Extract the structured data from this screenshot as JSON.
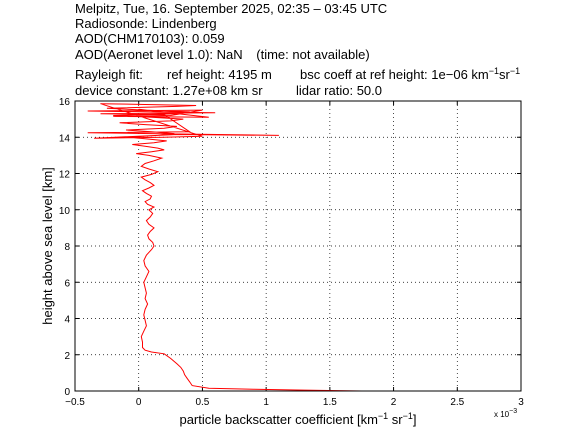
{
  "header": {
    "line1": "Melpitz, Tue, 16. September 2025, 02:35 – 03:45 UTC",
    "line2": "Radiosonde: Lindenberg",
    "line3": "AOD(CHM170103): 0.059",
    "line4_main": "AOD(Aeronet level 1.0): NaN",
    "line4_note": "(time: not available)",
    "rayleigh_label": "Rayleigh fit:",
    "ref_height": "ref height: 4195 m",
    "bsc_coeff_prefix": "bsc coeff at ref height: 1e−06 km",
    "device_constant": "device constant: 1.27e+08 km sr",
    "lidar_ratio": "lidar ratio: 50.0"
  },
  "units": {
    "exp_minus1": "−1",
    "sr": "sr"
  },
  "chart_data": {
    "type": "line",
    "xlabel_prefix": "particle backscatter coefficient [km",
    "xlabel_mid": " sr",
    "xlabel_suffix": "]",
    "xscale_label": "x 10",
    "xscale_exp": "−3",
    "ylabel": "height above sea level [km]",
    "xlim": [
      -0.5,
      3
    ],
    "ylim": [
      0,
      16
    ],
    "xticks": [
      -0.5,
      0,
      0.5,
      1,
      1.5,
      2,
      2.5,
      3
    ],
    "xtick_labels": [
      "−0.5",
      "0",
      "0.5",
      "1",
      "1.5",
      "2",
      "2.5",
      "3"
    ],
    "yticks": [
      0,
      2,
      4,
      6,
      8,
      10,
      12,
      14,
      16
    ],
    "ytick_labels": [
      "0",
      "2",
      "4",
      "6",
      "8",
      "10",
      "12",
      "14",
      "16"
    ],
    "grid": true,
    "series": [
      {
        "color": "#ff0000",
        "x": [
          1.75,
          1.3,
          0.9,
          0.55,
          0.42,
          0.4,
          0.38,
          0.36,
          0.35,
          0.33,
          0.3,
          0.25,
          0.2,
          0.1,
          0.05,
          0.03,
          0.03,
          0.02,
          0.04,
          0.06,
          0.05,
          0.04,
          0.05,
          0.07,
          0.05,
          0.06,
          0.05,
          0.04,
          0.06,
          0.08,
          0.05,
          0.04,
          0.06,
          0.1,
          0.12,
          0.11,
          0.08,
          0.07,
          0.09,
          0.12,
          0.08,
          0.06,
          0.09,
          0.11,
          0.08,
          0.12,
          0.07,
          0.05,
          0.09,
          0.1,
          0.06,
          0.03,
          0.08,
          0.12,
          0.09,
          0.05,
          0.02,
          0.1,
          0.15,
          0.08,
          0.02,
          0.05,
          0.12,
          0.18,
          0.08,
          -0.02,
          0.1,
          0.2,
          0.15,
          0.05,
          -0.05,
          0.12,
          0.22,
          0.08,
          -0.08,
          0.15,
          0.28,
          0.1,
          -0.1,
          0.2,
          0.3,
          0.05,
          -0.15,
          0.25,
          0.35,
          0.1,
          -0.2,
          0.3,
          0.4,
          0.05,
          -0.25,
          0.3,
          0.45,
          0.1,
          -0.3,
          0.5,
          0.2,
          -0.35,
          0.3,
          1.1,
          0.1,
          -0.4,
          0.4,
          0.2,
          -0.3,
          0.6,
          0.1,
          -0.4,
          0.5,
          0.25,
          -0.2,
          0.55,
          0.0
        ],
        "y": [
          0.0,
          0.05,
          0.1,
          0.15,
          0.3,
          0.5,
          0.7,
          0.9,
          1.1,
          1.3,
          1.5,
          1.8,
          2.05,
          2.15,
          2.25,
          2.4,
          2.7,
          3.0,
          3.3,
          3.6,
          3.9,
          4.2,
          4.5,
          4.8,
          5.1,
          5.4,
          5.7,
          6.0,
          6.3,
          6.6,
          6.9,
          7.2,
          7.5,
          7.8,
          8.0,
          8.2,
          8.4,
          8.6,
          8.8,
          9.0,
          9.2,
          9.4,
          9.6,
          9.8,
          10.0,
          10.15,
          10.3,
          10.45,
          10.6,
          10.75,
          10.9,
          11.05,
          11.2,
          11.35,
          11.5,
          11.65,
          11.8,
          11.95,
          12.1,
          12.25,
          12.4,
          12.55,
          12.7,
          12.85,
          13.0,
          13.1,
          13.2,
          13.3,
          13.4,
          13.5,
          13.6,
          13.7,
          13.8,
          13.9,
          14.0,
          14.1,
          14.2,
          14.3,
          14.4,
          14.5,
          14.6,
          14.7,
          14.8,
          14.9,
          15.0,
          15.1,
          15.2,
          15.3,
          15.4,
          15.5,
          15.6,
          15.7,
          15.75,
          15.8,
          15.85,
          14.05,
          14.0,
          13.95,
          14.15,
          14.1,
          14.2,
          14.25,
          14.3,
          15.25,
          15.3,
          15.35,
          15.4,
          15.45,
          15.5,
          15.2,
          15.15,
          15.1,
          15.55
        ]
      }
    ]
  }
}
